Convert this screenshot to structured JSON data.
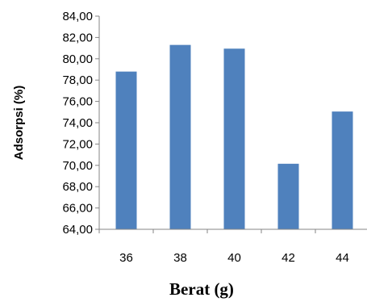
{
  "chart_data": {
    "type": "bar",
    "title": "",
    "xlabel": "Berat (g)",
    "ylabel": "Adsorpsi (%)",
    "categories": [
      "36",
      "38",
      "40",
      "42",
      "44"
    ],
    "values": [
      78.8,
      81.3,
      80.95,
      70.15,
      75.05
    ],
    "ylim": [
      64,
      84
    ],
    "yticks": [
      "64,00",
      "66,00",
      "68,00",
      "70,00",
      "72,00",
      "74,00",
      "76,00",
      "78,00",
      "80,00",
      "82,00",
      "84,00"
    ],
    "grid": false,
    "legend": "none",
    "bar_color": "#4f81bd"
  }
}
